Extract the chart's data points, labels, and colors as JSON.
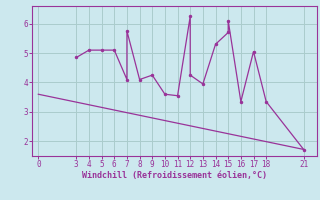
{
  "xlabel": "Windchill (Refroidissement éolien,°C)",
  "background_color": "#cce8ee",
  "grid_color": "#aacccc",
  "line_color": "#993399",
  "border_color": "#993399",
  "scatter_x": [
    3,
    4,
    5,
    6,
    7,
    7,
    8,
    9,
    10,
    11,
    12,
    12,
    13,
    14,
    15,
    15,
    16,
    17,
    18,
    21
  ],
  "scatter_y": [
    4.85,
    5.1,
    5.1,
    5.1,
    4.1,
    5.75,
    4.1,
    4.25,
    3.6,
    3.55,
    6.25,
    4.25,
    3.95,
    5.3,
    5.7,
    6.1,
    3.35,
    5.05,
    3.35,
    1.7
  ],
  "trend_x": [
    0,
    21
  ],
  "trend_y": [
    3.6,
    1.72
  ],
  "xticks": [
    0,
    3,
    4,
    5,
    6,
    7,
    8,
    9,
    10,
    11,
    12,
    13,
    14,
    15,
    16,
    17,
    18,
    21
  ],
  "yticks": [
    2,
    3,
    4,
    5,
    6
  ],
  "xlim": [
    -0.5,
    22
  ],
  "ylim": [
    1.5,
    6.6
  ]
}
